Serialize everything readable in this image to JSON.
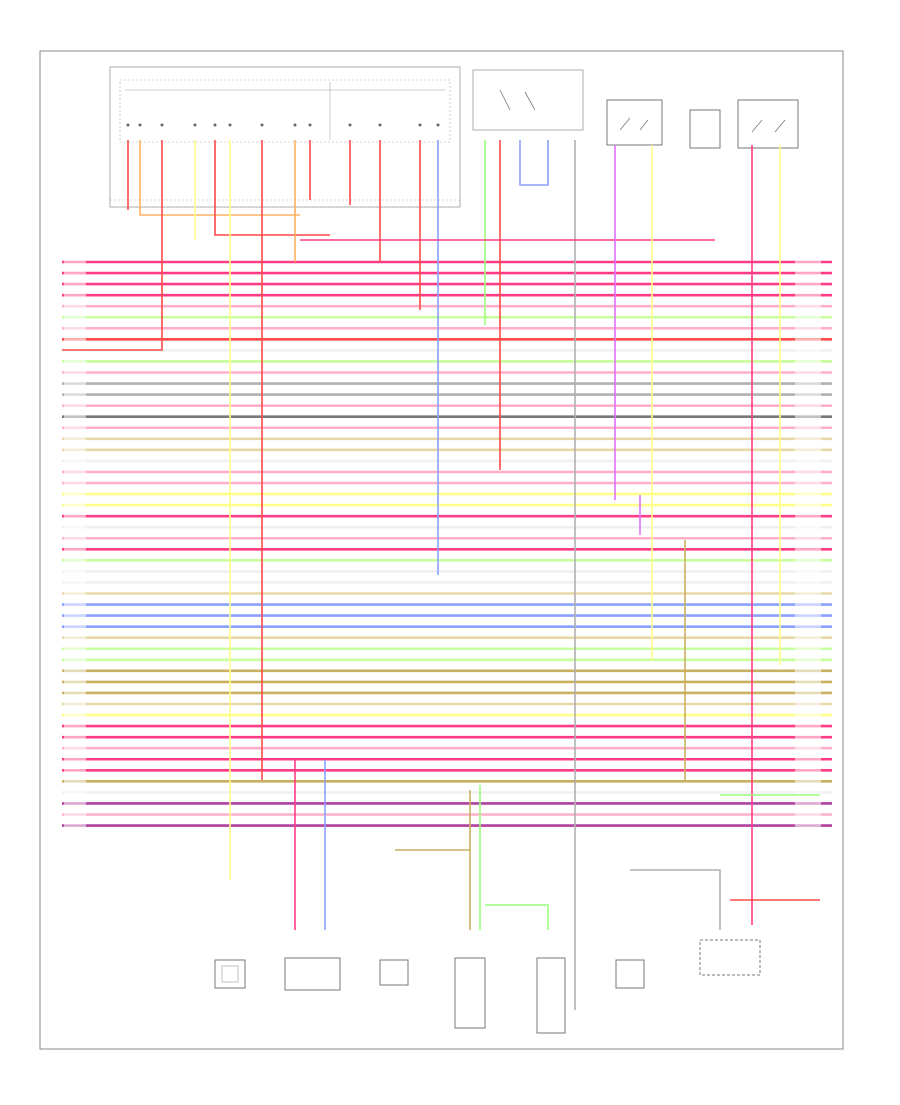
{
  "page_id": "",
  "colors": {
    "pink": "#ff3b86",
    "red": "#ff4a4a",
    "green": "#9cff7a",
    "yellow": "#ffff8a",
    "orange": "#ffb060",
    "violet": "#e070ff",
    "blue": "#8aa0ff",
    "olive": "#c8b060",
    "gray": "#b0b0b0",
    "darkgray": "#777777",
    "tan": "#e8d8a8",
    "purple": "#b040a0",
    "lightpink": "#ffb0c8",
    "lightgreen": "#c8ff9c",
    "white": "#f0f0f0"
  },
  "bus_colors": [
    "pink",
    "pink",
    "pink",
    "pink",
    "lightpink",
    "lightgreen",
    "lightpink",
    "red",
    "white",
    "lightgreen",
    "lightpink",
    "gray",
    "gray",
    "lightpink",
    "darkgray",
    "lightpink",
    "tan",
    "tan",
    "white",
    "lightpink",
    "lightpink",
    "yellow",
    "yellow",
    "pink",
    "white",
    "lightpink",
    "pink",
    "lightgreen",
    "white",
    "white",
    "tan",
    "blue",
    "blue",
    "blue",
    "tan",
    "lightgreen",
    "lightgreen",
    "olive",
    "olive",
    "olive",
    "tan",
    "yellow",
    "pink",
    "pink",
    "lightpink",
    "pink",
    "pink",
    "olive",
    "white",
    "purple",
    "lightpink",
    "purple"
  ],
  "connector_labels": [
    "",
    "",
    "",
    "",
    "",
    ""
  ],
  "component_labels": [
    "",
    "",
    "",
    "",
    "",
    "",
    "",
    "",
    ""
  ]
}
